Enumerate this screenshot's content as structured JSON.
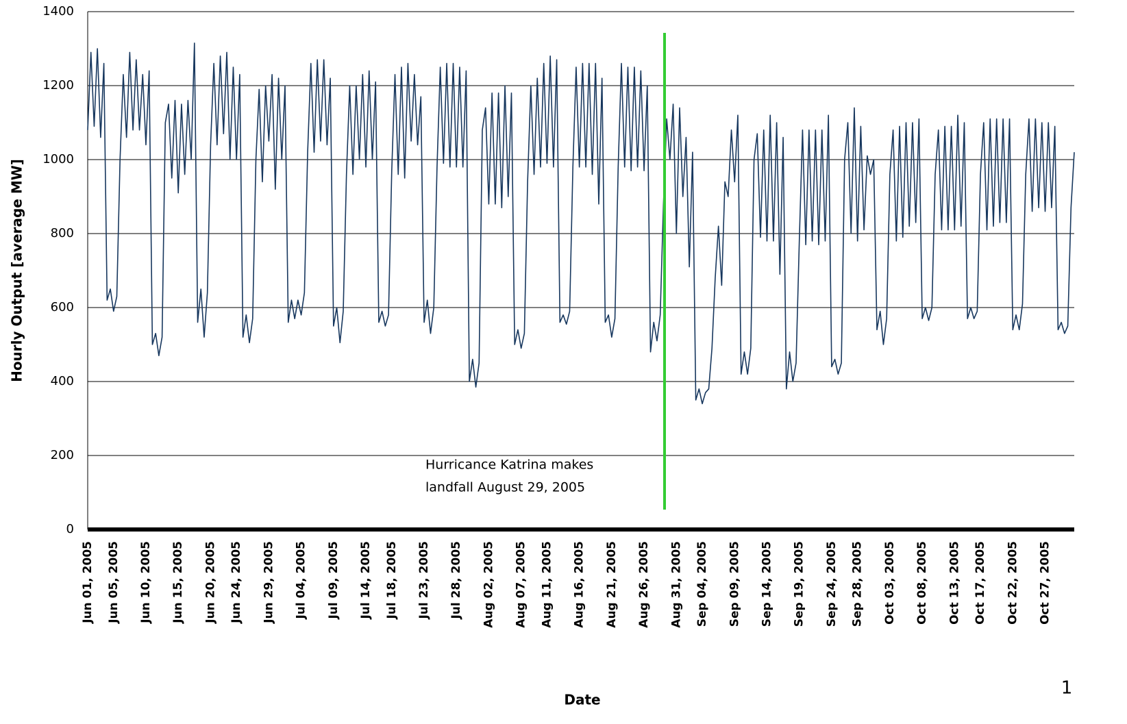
{
  "chart_data": {
    "type": "line",
    "y_label": "Hourly Output [average MW]",
    "x_label": "Date",
    "annotation": [
      "Hurricance Katrina makes",
      "landfall August 29, 2005"
    ],
    "page_number": "1",
    "ylim": [
      0,
      1400
    ],
    "yticks": [
      0,
      200,
      400,
      600,
      800,
      1000,
      1200,
      1400
    ],
    "grid": true,
    "categories": [
      "Jun 01, 2005",
      null,
      null,
      null,
      null,
      null,
      null,
      null,
      "Jun 05, 2005",
      null,
      null,
      null,
      null,
      null,
      null,
      null,
      null,
      null,
      "Jun 10, 2005",
      null,
      null,
      null,
      null,
      null,
      null,
      null,
      null,
      null,
      "Jun 15, 2005",
      null,
      null,
      null,
      null,
      null,
      null,
      null,
      null,
      null,
      "Jun 20, 2005",
      null,
      null,
      null,
      null,
      null,
      null,
      null,
      "Jun 24, 2005",
      null,
      null,
      null,
      null,
      null,
      null,
      null,
      null,
      null,
      "Jun 29, 2005",
      null,
      null,
      null,
      null,
      null,
      null,
      null,
      null,
      null,
      "Jul 04, 2005",
      null,
      null,
      null,
      null,
      null,
      null,
      null,
      null,
      null,
      "Jul 09, 2005",
      null,
      null,
      null,
      null,
      null,
      null,
      null,
      null,
      null,
      "Jul 14, 2005",
      null,
      null,
      null,
      null,
      null,
      null,
      null,
      "Jul 18, 2005",
      null,
      null,
      null,
      null,
      null,
      null,
      null,
      null,
      null,
      "Jul 23, 2005",
      null,
      null,
      null,
      null,
      null,
      null,
      null,
      null,
      null,
      "Jul 28, 2005",
      null,
      null,
      null,
      null,
      null,
      null,
      null,
      null,
      null,
      "Aug 02, 2005",
      null,
      null,
      null,
      null,
      null,
      null,
      null,
      null,
      null,
      "Aug 07, 2005",
      null,
      null,
      null,
      null,
      null,
      null,
      null,
      "Aug 11, 2005",
      null,
      null,
      null,
      null,
      null,
      null,
      null,
      null,
      null,
      "Aug 16, 2005",
      null,
      null,
      null,
      null,
      null,
      null,
      null,
      null,
      null,
      "Aug 21, 2005",
      null,
      null,
      null,
      null,
      null,
      null,
      null,
      null,
      null,
      "Aug 26, 2005",
      null,
      null,
      null,
      null,
      null,
      null,
      null,
      null,
      null,
      "Aug 31, 2005",
      null,
      null,
      null,
      null,
      null,
      null,
      null,
      "Sep 04, 2005",
      null,
      null,
      null,
      null,
      null,
      null,
      null,
      null,
      null,
      "Sep 09, 2005",
      null,
      null,
      null,
      null,
      null,
      null,
      null,
      null,
      null,
      "Sep 14, 2005",
      null,
      null,
      null,
      null,
      null,
      null,
      null,
      null,
      null,
      "Sep 19, 2005",
      null,
      null,
      null,
      null,
      null,
      null,
      null,
      null,
      null,
      "Sep 24, 2005",
      null,
      null,
      null,
      null,
      null,
      null,
      null,
      "Sep 28, 2005",
      null,
      null,
      null,
      null,
      null,
      null,
      null,
      null,
      null,
      "Oct 03, 2005",
      null,
      null,
      null,
      null,
      null,
      null,
      null,
      null,
      null,
      "Oct 08, 2005",
      null,
      null,
      null,
      null,
      null,
      null,
      null,
      null,
      null,
      "Oct 13, 2005",
      null,
      null,
      null,
      null,
      null,
      null,
      null,
      "Oct 17, 2005",
      null,
      null,
      null,
      null,
      null,
      null,
      null,
      null,
      null,
      "Oct 22, 2005",
      null,
      null,
      null,
      null,
      null,
      null,
      null,
      null,
      null,
      "Oct 27, 2005",
      null,
      null,
      null,
      null,
      null,
      null,
      null,
      null,
      null
    ],
    "series": [
      {
        "name": "Hourly Output",
        "color": "#17375e",
        "values": [
          1080,
          1290,
          1090,
          1300,
          1060,
          1260,
          620,
          650,
          590,
          630,
          1000,
          1230,
          1060,
          1290,
          1080,
          1270,
          1080,
          1230,
          1040,
          1240,
          500,
          530,
          470,
          520,
          1100,
          1150,
          950,
          1160,
          910,
          1150,
          960,
          1160,
          1000,
          1315,
          560,
          650,
          520,
          640,
          1040,
          1260,
          1040,
          1280,
          1070,
          1290,
          1000,
          1250,
          1000,
          1230,
          520,
          580,
          505,
          570,
          1000,
          1190,
          940,
          1200,
          1050,
          1230,
          920,
          1220,
          1000,
          1200,
          560,
          620,
          570,
          620,
          580,
          640,
          1020,
          1260,
          1020,
          1270,
          1050,
          1270,
          1040,
          1220,
          550,
          600,
          505,
          590,
          960,
          1200,
          960,
          1200,
          1000,
          1230,
          980,
          1240,
          1000,
          1210,
          560,
          590,
          550,
          580,
          970,
          1230,
          960,
          1250,
          950,
          1260,
          1050,
          1230,
          1040,
          1170,
          560,
          620,
          530,
          600,
          980,
          1250,
          990,
          1260,
          980,
          1260,
          980,
          1250,
          980,
          1240,
          400,
          460,
          385,
          450,
          1080,
          1140,
          880,
          1180,
          880,
          1180,
          870,
          1200,
          900,
          1180,
          500,
          540,
          490,
          530,
          940,
          1200,
          960,
          1220,
          980,
          1260,
          990,
          1280,
          980,
          1270,
          560,
          580,
          555,
          590,
          980,
          1250,
          980,
          1260,
          980,
          1260,
          960,
          1260,
          880,
          1220,
          560,
          580,
          520,
          570,
          980,
          1260,
          980,
          1250,
          970,
          1250,
          980,
          1240,
          970,
          1200,
          480,
          560,
          510,
          580,
          880,
          1110,
          1000,
          1150,
          800,
          1140,
          900,
          1060,
          710,
          1020,
          350,
          380,
          340,
          370,
          380,
          490,
          680,
          820,
          660,
          940,
          900,
          1080,
          940,
          1120,
          420,
          480,
          420,
          490,
          1000,
          1070,
          790,
          1080,
          780,
          1120,
          780,
          1100,
          690,
          1060,
          380,
          480,
          400,
          450,
          780,
          1080,
          770,
          1080,
          780,
          1080,
          770,
          1080,
          780,
          1120,
          440,
          460,
          420,
          450,
          1000,
          1100,
          800,
          1140,
          780,
          1090,
          810,
          1010,
          960,
          1000,
          540,
          590,
          500,
          570,
          960,
          1080,
          780,
          1090,
          790,
          1100,
          820,
          1100,
          830,
          1110,
          570,
          600,
          565,
          600,
          960,
          1080,
          810,
          1090,
          810,
          1090,
          810,
          1120,
          820,
          1100,
          570,
          600,
          570,
          590,
          960,
          1100,
          810,
          1110,
          820,
          1110,
          830,
          1110,
          830,
          1110,
          540,
          580,
          540,
          610,
          960,
          1110,
          860,
          1110,
          870,
          1100,
          860,
          1100,
          870,
          1090,
          540,
          560,
          530,
          550,
          870,
          1020
        ]
      }
    ]
  }
}
